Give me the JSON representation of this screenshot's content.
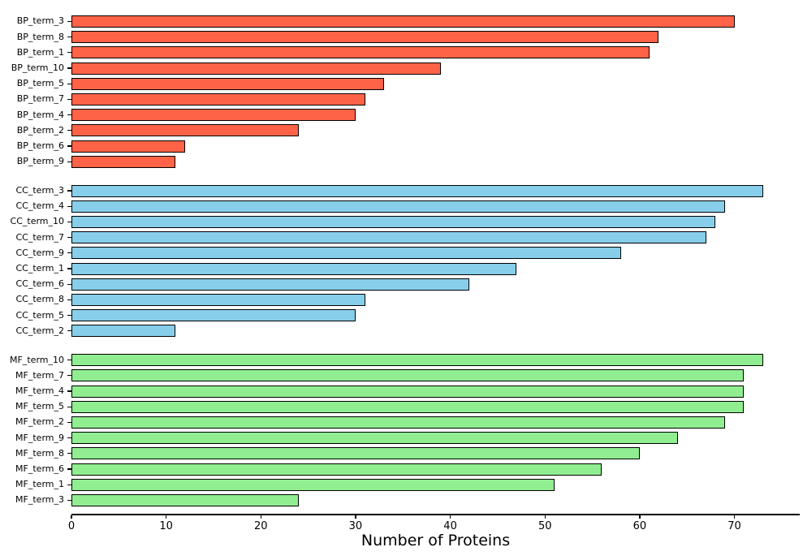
{
  "chart_data": {
    "type": "bar",
    "orientation": "horizontal",
    "title": "",
    "xlabel": "Number of Proteins",
    "ylabel": "",
    "xlim": [
      0,
      76.9
    ],
    "x_ticks": [
      0,
      10,
      20,
      30,
      40,
      50,
      60,
      70
    ],
    "grid": false,
    "legend": false,
    "bar_edge_color": "#000000",
    "groups": [
      {
        "name": "BP",
        "color": "#FF6347",
        "bars": [
          {
            "label": "BP_term_3",
            "value": 70
          },
          {
            "label": "BP_term_8",
            "value": 62
          },
          {
            "label": "BP_term_1",
            "value": 61
          },
          {
            "label": "BP_term_10",
            "value": 39
          },
          {
            "label": "BP_term_5",
            "value": 33
          },
          {
            "label": "BP_term_7",
            "value": 31
          },
          {
            "label": "BP_term_4",
            "value": 30
          },
          {
            "label": "BP_term_2",
            "value": 24
          },
          {
            "label": "BP_term_6",
            "value": 12
          },
          {
            "label": "BP_term_9",
            "value": 11
          }
        ]
      },
      {
        "name": "CC",
        "color": "#87CEEB",
        "bars": [
          {
            "label": "CC_term_3",
            "value": 73
          },
          {
            "label": "CC_term_4",
            "value": 69
          },
          {
            "label": "CC_term_10",
            "value": 68
          },
          {
            "label": "CC_term_7",
            "value": 67
          },
          {
            "label": "CC_term_9",
            "value": 58
          },
          {
            "label": "CC_term_1",
            "value": 47
          },
          {
            "label": "CC_term_6",
            "value": 42
          },
          {
            "label": "CC_term_8",
            "value": 31
          },
          {
            "label": "CC_term_5",
            "value": 30
          },
          {
            "label": "CC_term_2",
            "value": 11
          }
        ]
      },
      {
        "name": "MF",
        "color": "#90EE90",
        "bars": [
          {
            "label": "MF_term_10",
            "value": 73
          },
          {
            "label": "MF_term_7",
            "value": 71
          },
          {
            "label": "MF_term_4",
            "value": 71
          },
          {
            "label": "MF_term_5",
            "value": 71
          },
          {
            "label": "MF_term_2",
            "value": 69
          },
          {
            "label": "MF_term_9",
            "value": 64
          },
          {
            "label": "MF_term_8",
            "value": 60
          },
          {
            "label": "MF_term_6",
            "value": 56
          },
          {
            "label": "MF_term_1",
            "value": 51
          },
          {
            "label": "MF_term_3",
            "value": 24
          }
        ]
      }
    ]
  }
}
